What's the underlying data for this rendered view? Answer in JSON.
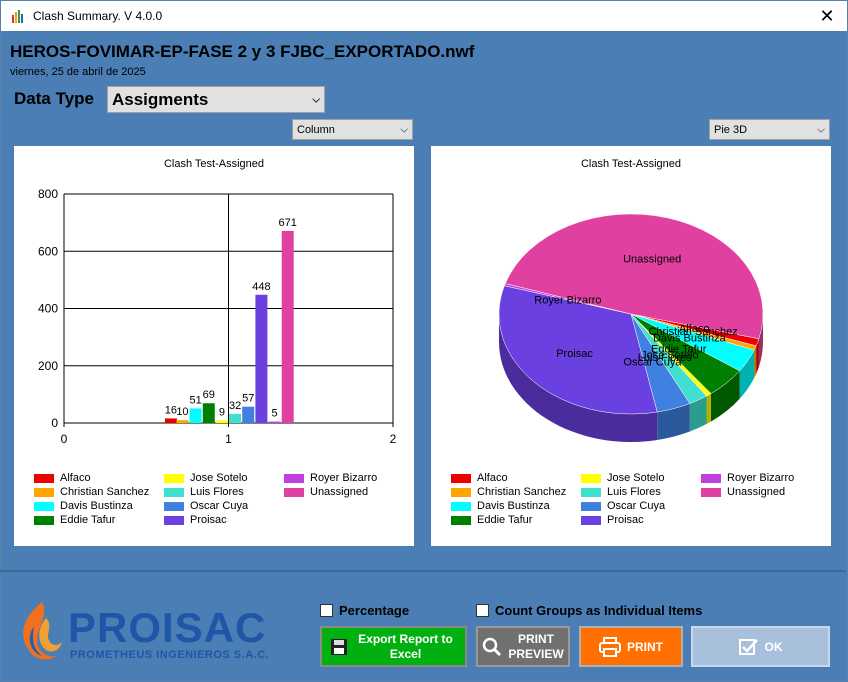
{
  "window": {
    "title": "Clash Summary. V 4.0.0"
  },
  "header": {
    "file_name": "HEROS-FOVIMAR-EP-FASE 2 y 3 FJBC_EXPORTADO.nwf",
    "date": "viernes, 25 de abril de 2025"
  },
  "data_type": {
    "label": "Data Type",
    "value": "Assigments"
  },
  "left_chart_type": "Column",
  "right_chart_type": "Pie 3D",
  "colors": {
    "Alfaco": "#ee0000",
    "Christian Sanchez": "#ffa500",
    "Davis Bustinza": "#00ffff",
    "Eddie Tafur": "#008000",
    "Jose Sotelo": "#ffff00",
    "Luis Flores": "#40e0d0",
    "Oscar Cuya": "#4080e0",
    "Proisac": "#6a40e0",
    "Royer Bizarro": "#c040e0",
    "Unassigned": "#e040a0"
  },
  "legend": [
    {
      "name": "Alfaco",
      "color": "#ee0000"
    },
    {
      "name": "Christian Sanchez",
      "color": "#ffa500"
    },
    {
      "name": "Davis Bustinza",
      "color": "#00ffff"
    },
    {
      "name": "Eddie Tafur",
      "color": "#008000"
    },
    {
      "name": "Jose Sotelo",
      "color": "#ffff00"
    },
    {
      "name": "Luis Flores",
      "color": "#40e0d0"
    },
    {
      "name": "Oscar Cuya",
      "color": "#4080e0"
    },
    {
      "name": "Proisac",
      "color": "#6a40e0"
    },
    {
      "name": "Royer Bizarro",
      "color": "#c040e0"
    },
    {
      "name": "Unassigned",
      "color": "#e040a0"
    }
  ],
  "chart_data": [
    {
      "type": "bar",
      "title": "Clash Test-Assigned",
      "series": [
        {
          "name": "Alfaco",
          "x": 0.65,
          "value": 16
        },
        {
          "name": "Christian Sanchez",
          "x": 0.72,
          "value": 10
        },
        {
          "name": "Davis Bustinza",
          "x": 0.8,
          "value": 51
        },
        {
          "name": "Eddie Tafur",
          "x": 0.88,
          "value": 69
        },
        {
          "name": "Jose Sotelo",
          "x": 0.96,
          "value": 9
        },
        {
          "name": "Luis Flores",
          "x": 1.04,
          "value": 32
        },
        {
          "name": "Oscar Cuya",
          "x": 1.12,
          "value": 57
        },
        {
          "name": "Proisac",
          "x": 1.2,
          "value": 448
        },
        {
          "name": "Royer Bizarro",
          "x": 1.28,
          "value": 5
        },
        {
          "name": "Unassigned",
          "x": 1.36,
          "value": 671
        }
      ],
      "ylim": [
        0,
        800
      ],
      "yticks": [
        0,
        200,
        400,
        600,
        800
      ],
      "xlim": [
        0,
        2
      ],
      "xticks": [
        0,
        1,
        2
      ],
      "grid": true,
      "legend": "bottom"
    },
    {
      "type": "pie",
      "title": "Clash Test-Assigned",
      "slices": [
        {
          "name": "Alfaco",
          "value": 16
        },
        {
          "name": "Christian Sanchez",
          "value": 10
        },
        {
          "name": "Davis Bustinza",
          "value": 51
        },
        {
          "name": "Eddie Tafur",
          "value": 69
        },
        {
          "name": "Jose Sotelo",
          "value": 9
        },
        {
          "name": "Luis Flores",
          "value": 32
        },
        {
          "name": "Oscar Cuya",
          "value": 57
        },
        {
          "name": "Proisac",
          "value": 448
        },
        {
          "name": "Royer Bizarro",
          "value": 5
        },
        {
          "name": "Unassigned",
          "value": 671
        }
      ],
      "legend": "bottom"
    }
  ],
  "options": {
    "percentage_label": "Percentage",
    "count_groups_label": "Count Groups as Individual Items"
  },
  "buttons": {
    "export_label": "Export Report to Excel",
    "preview_label_1": "PRINT",
    "preview_label_2": "PREVIEW",
    "print_label": "PRINT",
    "ok_label": "OK"
  },
  "logo": {
    "name": "PROISAC",
    "subtitle": "PROMETHEUS INGENIEROS S.A.C."
  }
}
